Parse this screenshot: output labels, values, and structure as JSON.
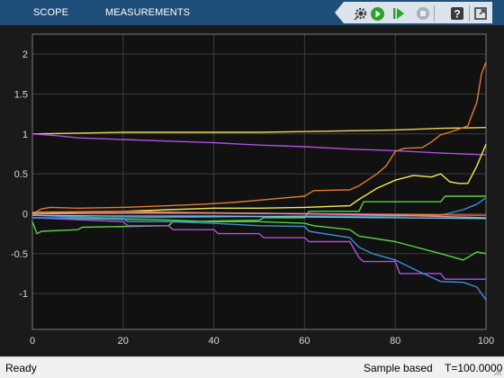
{
  "toolstrip": {
    "tabs": [
      {
        "label": "SCOPE"
      },
      {
        "label": "MEASUREMENTS"
      }
    ],
    "buttons": [
      {
        "name": "collapse-toolstrip-button",
        "icon": "triangle-left-icon"
      },
      {
        "name": "settings-button",
        "icon": "gear-icon"
      },
      {
        "name": "run-button",
        "icon": "run-icon"
      },
      {
        "name": "step-forward-button",
        "icon": "step-forward-icon"
      },
      {
        "name": "stop-button",
        "icon": "stop-icon"
      },
      {
        "name": "help-button",
        "icon": "help-icon"
      },
      {
        "name": "undock-button",
        "icon": "undock-icon"
      }
    ],
    "colors": {
      "background": "#1f4e7a",
      "buttons": "#dde3ea",
      "run": "#2aa32a"
    }
  },
  "status": {
    "state": "Ready",
    "mode": "Sample based",
    "time": "T=100.0000"
  },
  "chart_data": {
    "type": "line",
    "title": "",
    "xlabel": "",
    "ylabel": "",
    "xlim": [
      0,
      100
    ],
    "ylim": [
      -1.45,
      2.25
    ],
    "xticks": [
      0,
      20,
      40,
      60,
      80,
      100
    ],
    "yticks": [
      -1,
      -0.5,
      0,
      0.5,
      1,
      1.5,
      2
    ],
    "ytick_labels": [
      "-1",
      "-0.5",
      "0",
      "0.5",
      "1",
      "1.5",
      "2"
    ],
    "grid": true,
    "background": "#111111",
    "series": [
      {
        "color": "#e6d55c",
        "x": [
          0,
          10,
          20,
          30,
          40,
          50,
          60,
          70,
          80,
          90,
          100
        ],
        "y": [
          1.0,
          1.01,
          1.02,
          1.02,
          1.02,
          1.02,
          1.03,
          1.04,
          1.05,
          1.07,
          1.08
        ]
      },
      {
        "color": "#b24ee3",
        "x": [
          0,
          5,
          10,
          20,
          30,
          40,
          50,
          60,
          70,
          80,
          90,
          95,
          100
        ],
        "y": [
          1.0,
          0.98,
          0.95,
          0.93,
          0.91,
          0.89,
          0.86,
          0.84,
          0.81,
          0.79,
          0.76,
          0.75,
          0.74
        ]
      },
      {
        "color": "#e87a34",
        "x": [
          0,
          2,
          4,
          10,
          20,
          30,
          38,
          44,
          50,
          56,
          60,
          62,
          70,
          72,
          76,
          78,
          80,
          82,
          86,
          88,
          90,
          92,
          94,
          96,
          98,
          99,
          100
        ],
        "y": [
          0.0,
          0.06,
          0.08,
          0.07,
          0.08,
          0.1,
          0.12,
          0.14,
          0.17,
          0.2,
          0.22,
          0.29,
          0.3,
          0.35,
          0.5,
          0.6,
          0.78,
          0.82,
          0.83,
          0.9,
          0.99,
          1.02,
          1.06,
          1.1,
          1.4,
          1.75,
          1.9
        ]
      },
      {
        "color": "#f0ea57",
        "x": [
          0,
          10,
          20,
          30,
          40,
          50,
          60,
          70,
          72,
          74,
          76,
          80,
          84,
          88,
          90,
          92,
          94,
          96,
          98,
          100
        ],
        "y": [
          0.0,
          0.02,
          0.03,
          0.05,
          0.07,
          0.07,
          0.08,
          0.1,
          0.18,
          0.25,
          0.32,
          0.42,
          0.48,
          0.46,
          0.5,
          0.4,
          0.38,
          0.38,
          0.6,
          0.87
        ]
      },
      {
        "color": "#57d147",
        "x": [
          0,
          1,
          2,
          10,
          11,
          30,
          31,
          50,
          51,
          60,
          61,
          72,
          73,
          90,
          91,
          100
        ],
        "y": [
          -0.1,
          -0.25,
          -0.22,
          -0.2,
          -0.17,
          -0.15,
          -0.1,
          -0.08,
          -0.05,
          -0.05,
          0.03,
          0.03,
          0.15,
          0.15,
          0.22,
          0.22
        ]
      },
      {
        "color": "#57d147",
        "x": [
          0,
          10,
          20,
          30,
          40,
          50,
          60,
          62,
          70,
          72,
          80,
          90,
          95,
          98,
          100
        ],
        "y": [
          -0.05,
          -0.06,
          -0.07,
          -0.08,
          -0.1,
          -0.1,
          -0.12,
          -0.15,
          -0.2,
          -0.28,
          -0.35,
          -0.5,
          -0.58,
          -0.48,
          -0.5
        ]
      },
      {
        "color": "#b24ee3",
        "x": [
          0,
          20,
          21,
          30,
          31,
          40,
          41,
          50,
          51,
          60,
          61,
          70,
          71,
          72,
          73,
          80,
          81,
          90,
          91,
          100
        ],
        "y": [
          -0.05,
          -0.1,
          -0.15,
          -0.15,
          -0.2,
          -0.2,
          -0.25,
          -0.25,
          -0.3,
          -0.3,
          -0.35,
          -0.35,
          -0.45,
          -0.55,
          -0.6,
          -0.6,
          -0.75,
          -0.75,
          -0.82,
          -0.82
        ]
      },
      {
        "color": "#3e8fdb",
        "x": [
          0,
          10,
          20,
          21,
          30,
          40,
          50,
          60,
          61,
          70,
          72,
          75,
          80,
          85,
          90,
          95,
          98,
          100
        ],
        "y": [
          -0.02,
          -0.04,
          -0.06,
          -0.1,
          -0.1,
          -0.12,
          -0.15,
          -0.16,
          -0.22,
          -0.3,
          -0.42,
          -0.5,
          -0.58,
          -0.72,
          -0.85,
          -0.86,
          -0.92,
          -1.08
        ]
      },
      {
        "color": "#3e8fdb",
        "x": [
          0,
          20,
          40,
          60,
          80,
          90,
          95,
          98,
          100
        ],
        "y": [
          -0.05,
          -0.05,
          -0.04,
          -0.03,
          -0.03,
          -0.02,
          0.05,
          0.12,
          0.2
        ]
      },
      {
        "color": "#e87a34",
        "x": [
          0,
          20,
          40,
          60,
          80,
          100
        ],
        "y": [
          0.02,
          0.03,
          0.01,
          0.0,
          -0.01,
          -0.02
        ]
      },
      {
        "color": "#e88aa0",
        "x": [
          0,
          20,
          40,
          60,
          80,
          100
        ],
        "y": [
          0.0,
          0.01,
          0.01,
          0.0,
          -0.02,
          -0.05
        ]
      },
      {
        "color": "#6ec3e0",
        "x": [
          0,
          20,
          40,
          60,
          80,
          100
        ],
        "y": [
          -0.02,
          -0.03,
          -0.03,
          -0.04,
          -0.05,
          -0.06
        ]
      }
    ]
  }
}
